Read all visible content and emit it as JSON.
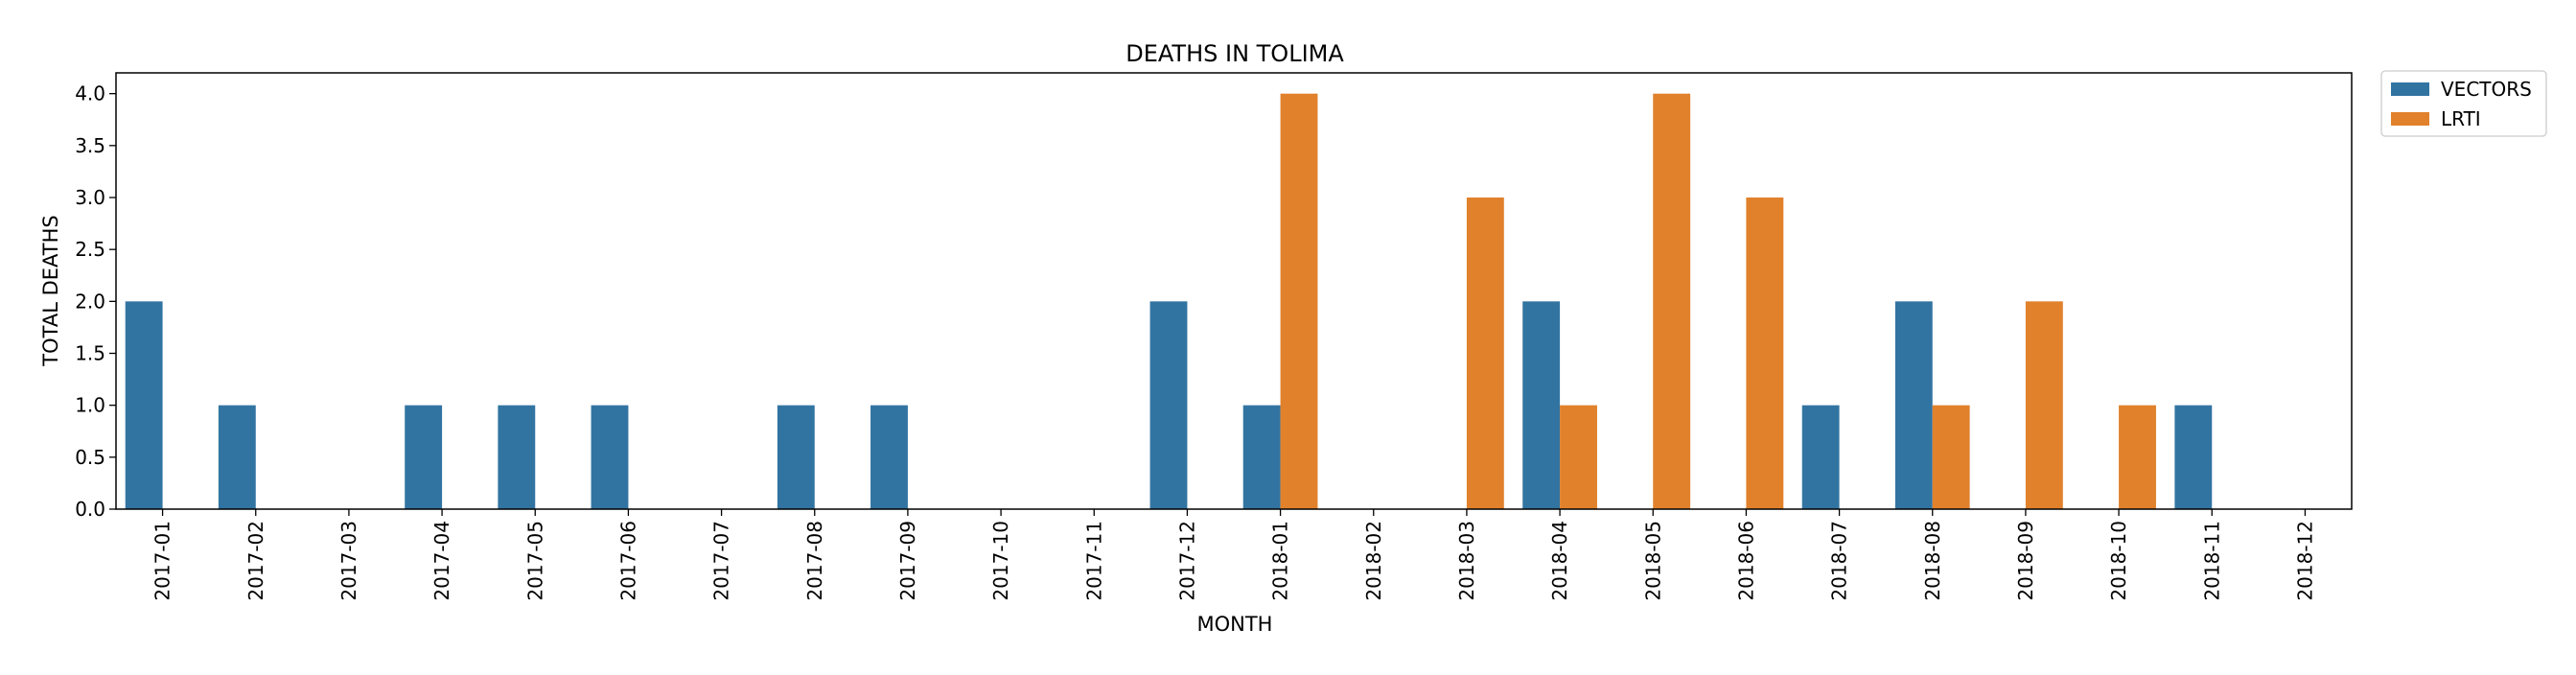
{
  "chart_data": {
    "type": "bar",
    "title": "DEATHS IN TOLIMA",
    "xlabel": "MONTH",
    "ylabel": "TOTAL DEATHS",
    "ylim": [
      0,
      4.2
    ],
    "yticks": [
      "0.0",
      "0.5",
      "1.0",
      "1.5",
      "2.0",
      "2.5",
      "3.0",
      "3.5",
      "4.0"
    ],
    "categories": [
      "2017-01",
      "2017-02",
      "2017-03",
      "2017-04",
      "2017-05",
      "2017-06",
      "2017-07",
      "2017-08",
      "2017-09",
      "2017-10",
      "2017-11",
      "2017-12",
      "2018-01",
      "2018-02",
      "2018-03",
      "2018-04",
      "2018-05",
      "2018-06",
      "2018-07",
      "2018-08",
      "2018-09",
      "2018-10",
      "2018-11",
      "2018-12"
    ],
    "series": [
      {
        "name": "VECTORS",
        "color": "#3274a1",
        "values": [
          2,
          1,
          0,
          1,
          1,
          1,
          0,
          1,
          1,
          0,
          0,
          2,
          1,
          0,
          0,
          2,
          0,
          0,
          1,
          2,
          0,
          0,
          1,
          0
        ]
      },
      {
        "name": "LRTI",
        "color": "#e1812c",
        "values": [
          0,
          0,
          0,
          0,
          0,
          0,
          0,
          0,
          0,
          0,
          0,
          0,
          4,
          0,
          3,
          1,
          4,
          3,
          0,
          1,
          2,
          1,
          0,
          0
        ]
      }
    ],
    "legend_position": "outside-top-right",
    "grid": false
  }
}
